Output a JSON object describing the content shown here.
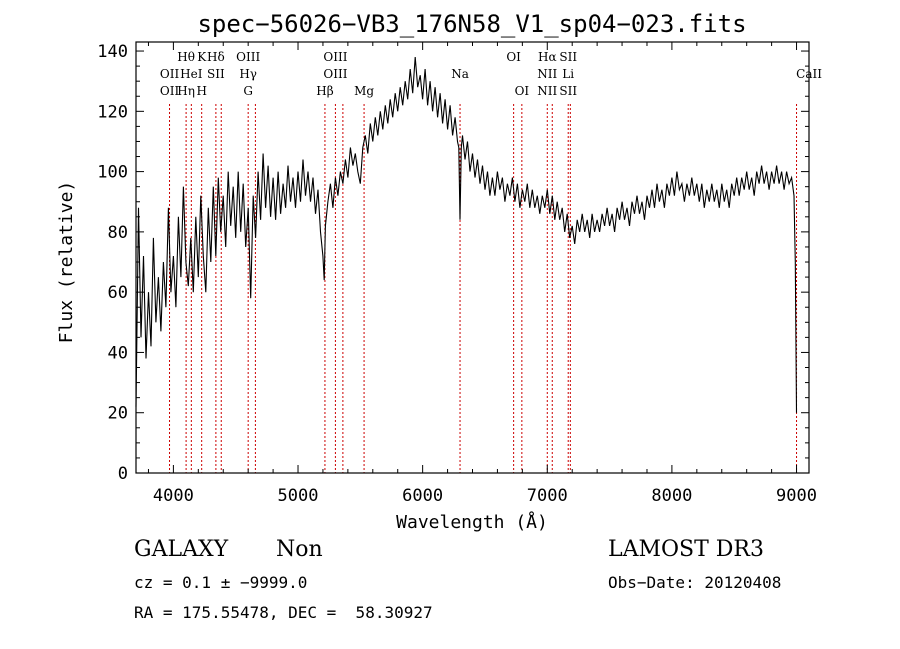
{
  "chart_data": {
    "type": "line",
    "title": "spec−56026−VB3_176N58_V1_sp04−023.fits",
    "xlabel": "Wavelength (Å)",
    "ylabel": "Flux (relative)",
    "xlim": [
      3700,
      9100
    ],
    "ylim": [
      0,
      143
    ],
    "xticks": [
      4000,
      5000,
      6000,
      7000,
      8000,
      9000
    ],
    "yticks": [
      0,
      20,
      40,
      60,
      80,
      100,
      120,
      140
    ],
    "grid": false,
    "series": [
      {
        "name": "flux",
        "points": [
          [
            3700,
            22
          ],
          [
            3720,
            88
          ],
          [
            3740,
            45
          ],
          [
            3760,
            72
          ],
          [
            3780,
            38
          ],
          [
            3800,
            60
          ],
          [
            3820,
            42
          ],
          [
            3840,
            78
          ],
          [
            3860,
            50
          ],
          [
            3880,
            65
          ],
          [
            3900,
            47
          ],
          [
            3920,
            70
          ],
          [
            3940,
            55
          ],
          [
            3960,
            88
          ],
          [
            3980,
            60
          ],
          [
            4000,
            72
          ],
          [
            4020,
            55
          ],
          [
            4040,
            85
          ],
          [
            4060,
            65
          ],
          [
            4080,
            95
          ],
          [
            4100,
            70
          ],
          [
            4120,
            62
          ],
          [
            4140,
            78
          ],
          [
            4160,
            60
          ],
          [
            4180,
            85
          ],
          [
            4200,
            65
          ],
          [
            4220,
            92
          ],
          [
            4240,
            72
          ],
          [
            4260,
            60
          ],
          [
            4280,
            88
          ],
          [
            4300,
            70
          ],
          [
            4320,
            95
          ],
          [
            4340,
            72
          ],
          [
            4360,
            98
          ],
          [
            4380,
            80
          ],
          [
            4400,
            92
          ],
          [
            4420,
            75
          ],
          [
            4440,
            100
          ],
          [
            4460,
            82
          ],
          [
            4480,
            95
          ],
          [
            4500,
            78
          ],
          [
            4520,
            100
          ],
          [
            4540,
            80
          ],
          [
            4560,
            96
          ],
          [
            4580,
            75
          ],
          [
            4600,
            88
          ],
          [
            4620,
            58
          ],
          [
            4640,
            92
          ],
          [
            4660,
            78
          ],
          [
            4680,
            100
          ],
          [
            4700,
            84
          ],
          [
            4720,
            106
          ],
          [
            4740,
            88
          ],
          [
            4760,
            102
          ],
          [
            4780,
            85
          ],
          [
            4800,
            98
          ],
          [
            4820,
            84
          ],
          [
            4840,
            100
          ],
          [
            4860,
            86
          ],
          [
            4880,
            96
          ],
          [
            4900,
            88
          ],
          [
            4920,
            102
          ],
          [
            4940,
            90
          ],
          [
            4960,
            98
          ],
          [
            4980,
            88
          ],
          [
            5000,
            100
          ],
          [
            5020,
            90
          ],
          [
            5040,
            104
          ],
          [
            5060,
            92
          ],
          [
            5080,
            100
          ],
          [
            5100,
            90
          ],
          [
            5120,
            98
          ],
          [
            5140,
            86
          ],
          [
            5160,
            94
          ],
          [
            5180,
            80
          ],
          [
            5200,
            72
          ],
          [
            5210,
            64
          ],
          [
            5220,
            82
          ],
          [
            5240,
            90
          ],
          [
            5260,
            96
          ],
          [
            5280,
            88
          ],
          [
            5300,
            98
          ],
          [
            5320,
            92
          ],
          [
            5340,
            100
          ],
          [
            5360,
            96
          ],
          [
            5380,
            104
          ],
          [
            5400,
            98
          ],
          [
            5420,
            108
          ],
          [
            5440,
            102
          ],
          [
            5460,
            106
          ],
          [
            5480,
            100
          ],
          [
            5500,
            96
          ],
          [
            5520,
            108
          ],
          [
            5540,
            112
          ],
          [
            5560,
            106
          ],
          [
            5580,
            116
          ],
          [
            5600,
            110
          ],
          [
            5620,
            118
          ],
          [
            5640,
            112
          ],
          [
            5660,
            120
          ],
          [
            5680,
            114
          ],
          [
            5700,
            122
          ],
          [
            5720,
            116
          ],
          [
            5740,
            124
          ],
          [
            5760,
            118
          ],
          [
            5780,
            126
          ],
          [
            5800,
            120
          ],
          [
            5820,
            128
          ],
          [
            5840,
            122
          ],
          [
            5860,
            130
          ],
          [
            5880,
            124
          ],
          [
            5900,
            134
          ],
          [
            5920,
            126
          ],
          [
            5940,
            138
          ],
          [
            5960,
            128
          ],
          [
            5980,
            132
          ],
          [
            6000,
            124
          ],
          [
            6020,
            134
          ],
          [
            6040,
            122
          ],
          [
            6060,
            130
          ],
          [
            6080,
            120
          ],
          [
            6100,
            128
          ],
          [
            6120,
            118
          ],
          [
            6140,
            126
          ],
          [
            6160,
            116
          ],
          [
            6180,
            124
          ],
          [
            6200,
            114
          ],
          [
            6220,
            122
          ],
          [
            6240,
            112
          ],
          [
            6260,
            118
          ],
          [
            6280,
            110
          ],
          [
            6290,
            108
          ],
          [
            6300,
            84
          ],
          [
            6310,
            108
          ],
          [
            6320,
            112
          ],
          [
            6340,
            104
          ],
          [
            6360,
            110
          ],
          [
            6380,
            100
          ],
          [
            6400,
            106
          ],
          [
            6420,
            98
          ],
          [
            6440,
            104
          ],
          [
            6460,
            96
          ],
          [
            6480,
            102
          ],
          [
            6500,
            94
          ],
          [
            6520,
            100
          ],
          [
            6540,
            92
          ],
          [
            6560,
            98
          ],
          [
            6580,
            92
          ],
          [
            6600,
            100
          ],
          [
            6620,
            94
          ],
          [
            6640,
            98
          ],
          [
            6660,
            90
          ],
          [
            6680,
            96
          ],
          [
            6700,
            92
          ],
          [
            6720,
            98
          ],
          [
            6740,
            90
          ],
          [
            6760,
            96
          ],
          [
            6780,
            88
          ],
          [
            6800,
            94
          ],
          [
            6820,
            90
          ],
          [
            6840,
            96
          ],
          [
            6860,
            88
          ],
          [
            6880,
            94
          ],
          [
            6900,
            88
          ],
          [
            6920,
            92
          ],
          [
            6940,
            86
          ],
          [
            6960,
            92
          ],
          [
            6980,
            88
          ],
          [
            7000,
            94
          ],
          [
            7020,
            86
          ],
          [
            7040,
            92
          ],
          [
            7060,
            84
          ],
          [
            7080,
            90
          ],
          [
            7100,
            84
          ],
          [
            7120,
            88
          ],
          [
            7140,
            80
          ],
          [
            7160,
            86
          ],
          [
            7180,
            78
          ],
          [
            7200,
            82
          ],
          [
            7220,
            76
          ],
          [
            7240,
            84
          ],
          [
            7260,
            80
          ],
          [
            7280,
            86
          ],
          [
            7300,
            80
          ],
          [
            7320,
            84
          ],
          [
            7340,
            78
          ],
          [
            7360,
            86
          ],
          [
            7380,
            80
          ],
          [
            7400,
            84
          ],
          [
            7420,
            80
          ],
          [
            7440,
            86
          ],
          [
            7460,
            82
          ],
          [
            7480,
            88
          ],
          [
            7500,
            82
          ],
          [
            7520,
            86
          ],
          [
            7540,
            80
          ],
          [
            7560,
            88
          ],
          [
            7580,
            84
          ],
          [
            7600,
            90
          ],
          [
            7620,
            84
          ],
          [
            7640,
            88
          ],
          [
            7660,
            82
          ],
          [
            7680,
            90
          ],
          [
            7700,
            86
          ],
          [
            7720,
            92
          ],
          [
            7740,
            86
          ],
          [
            7760,
            90
          ],
          [
            7780,
            84
          ],
          [
            7800,
            92
          ],
          [
            7820,
            88
          ],
          [
            7840,
            94
          ],
          [
            7860,
            88
          ],
          [
            7880,
            96
          ],
          [
            7900,
            90
          ],
          [
            7920,
            94
          ],
          [
            7940,
            88
          ],
          [
            7960,
            96
          ],
          [
            7980,
            92
          ],
          [
            8000,
            98
          ],
          [
            8020,
            92
          ],
          [
            8040,
            100
          ],
          [
            8060,
            94
          ],
          [
            8080,
            96
          ],
          [
            8100,
            90
          ],
          [
            8120,
            96
          ],
          [
            8140,
            92
          ],
          [
            8160,
            98
          ],
          [
            8180,
            92
          ],
          [
            8200,
            96
          ],
          [
            8220,
            90
          ],
          [
            8240,
            96
          ],
          [
            8260,
            88
          ],
          [
            8280,
            94
          ],
          [
            8300,
            90
          ],
          [
            8320,
            96
          ],
          [
            8340,
            90
          ],
          [
            8360,
            94
          ],
          [
            8380,
            88
          ],
          [
            8400,
            96
          ],
          [
            8420,
            90
          ],
          [
            8440,
            94
          ],
          [
            8460,
            88
          ],
          [
            8480,
            96
          ],
          [
            8500,
            92
          ],
          [
            8520,
            98
          ],
          [
            8540,
            92
          ],
          [
            8560,
            98
          ],
          [
            8580,
            94
          ],
          [
            8600,
            100
          ],
          [
            8620,
            94
          ],
          [
            8640,
            98
          ],
          [
            8660,
            92
          ],
          [
            8680,
            100
          ],
          [
            8700,
            96
          ],
          [
            8720,
            102
          ],
          [
            8740,
            96
          ],
          [
            8760,
            100
          ],
          [
            8780,
            94
          ],
          [
            8800,
            100
          ],
          [
            8820,
            96
          ],
          [
            8840,
            102
          ],
          [
            8860,
            96
          ],
          [
            8880,
            100
          ],
          [
            8900,
            94
          ],
          [
            8920,
            100
          ],
          [
            8940,
            96
          ],
          [
            8960,
            98
          ],
          [
            8980,
            92
          ],
          [
            8990,
            70
          ],
          [
            9000,
            20
          ]
        ]
      }
    ],
    "lines": [
      {
        "wl": 3969,
        "labels": [
          "OII",
          "OII"
        ],
        "rows": [
          2,
          3
        ]
      },
      {
        "wl": 4102,
        "labels": [
          "Hθ",
          "Hη"
        ],
        "rows": [
          0,
          3
        ]
      },
      {
        "wl": 4144,
        "labels": [
          "HeI"
        ],
        "rows": [
          2
        ]
      },
      {
        "wl": 4227,
        "labels": [
          "K",
          "H"
        ],
        "rows": [
          0,
          3
        ]
      },
      {
        "wl": 4341,
        "labels": [
          "Hδ",
          "SII"
        ],
        "rows": [
          0,
          2
        ]
      },
      {
        "wl": 4384,
        "labels": [],
        "rows": []
      },
      {
        "wl": 4600,
        "labels": [
          "OIII",
          "Hγ",
          "G"
        ],
        "rows": [
          0,
          2,
          3
        ]
      },
      {
        "wl": 4658,
        "labels": [],
        "rows": []
      },
      {
        "wl": 5216,
        "labels": [
          "Hβ"
        ],
        "rows": [
          3
        ]
      },
      {
        "wl": 5300,
        "labels": [
          "OIII",
          "OIII"
        ],
        "rows": [
          0,
          2
        ]
      },
      {
        "wl": 5360,
        "labels": [],
        "rows": []
      },
      {
        "wl": 5530,
        "labels": [
          "Mg"
        ],
        "rows": [
          3
        ]
      },
      {
        "wl": 6300,
        "labels": [
          "Na"
        ],
        "rows": [
          2
        ]
      },
      {
        "wl": 6730,
        "labels": [
          "OI"
        ],
        "rows": [
          0
        ]
      },
      {
        "wl": 6796,
        "labels": [
          "OI"
        ],
        "rows": [
          3
        ]
      },
      {
        "wl": 7000,
        "labels": [
          "Hα",
          "NII",
          "NII"
        ],
        "rows": [
          0,
          2,
          3
        ]
      },
      {
        "wl": 7040,
        "labels": [],
        "rows": []
      },
      {
        "wl": 7168,
        "labels": [
          "SII",
          "Li",
          "SII"
        ],
        "rows": [
          0,
          2,
          3
        ]
      },
      {
        "wl": 7185,
        "labels": [],
        "rows": []
      },
      {
        "wl": 9000,
        "labels": [
          "CaII"
        ],
        "rows": [
          2
        ]
      }
    ]
  },
  "footer": {
    "object_class": "GALAXY",
    "subclass": "Non",
    "survey": "LAMOST DR3",
    "cz_line": "cz = 0.1 ± −9999.0",
    "obs_date": "Obs−Date: 20120408",
    "coords": "RA = 175.55478, DEC =  58.30927"
  },
  "colors": {
    "line_marker": "#cc0000",
    "axis": "#000000"
  }
}
